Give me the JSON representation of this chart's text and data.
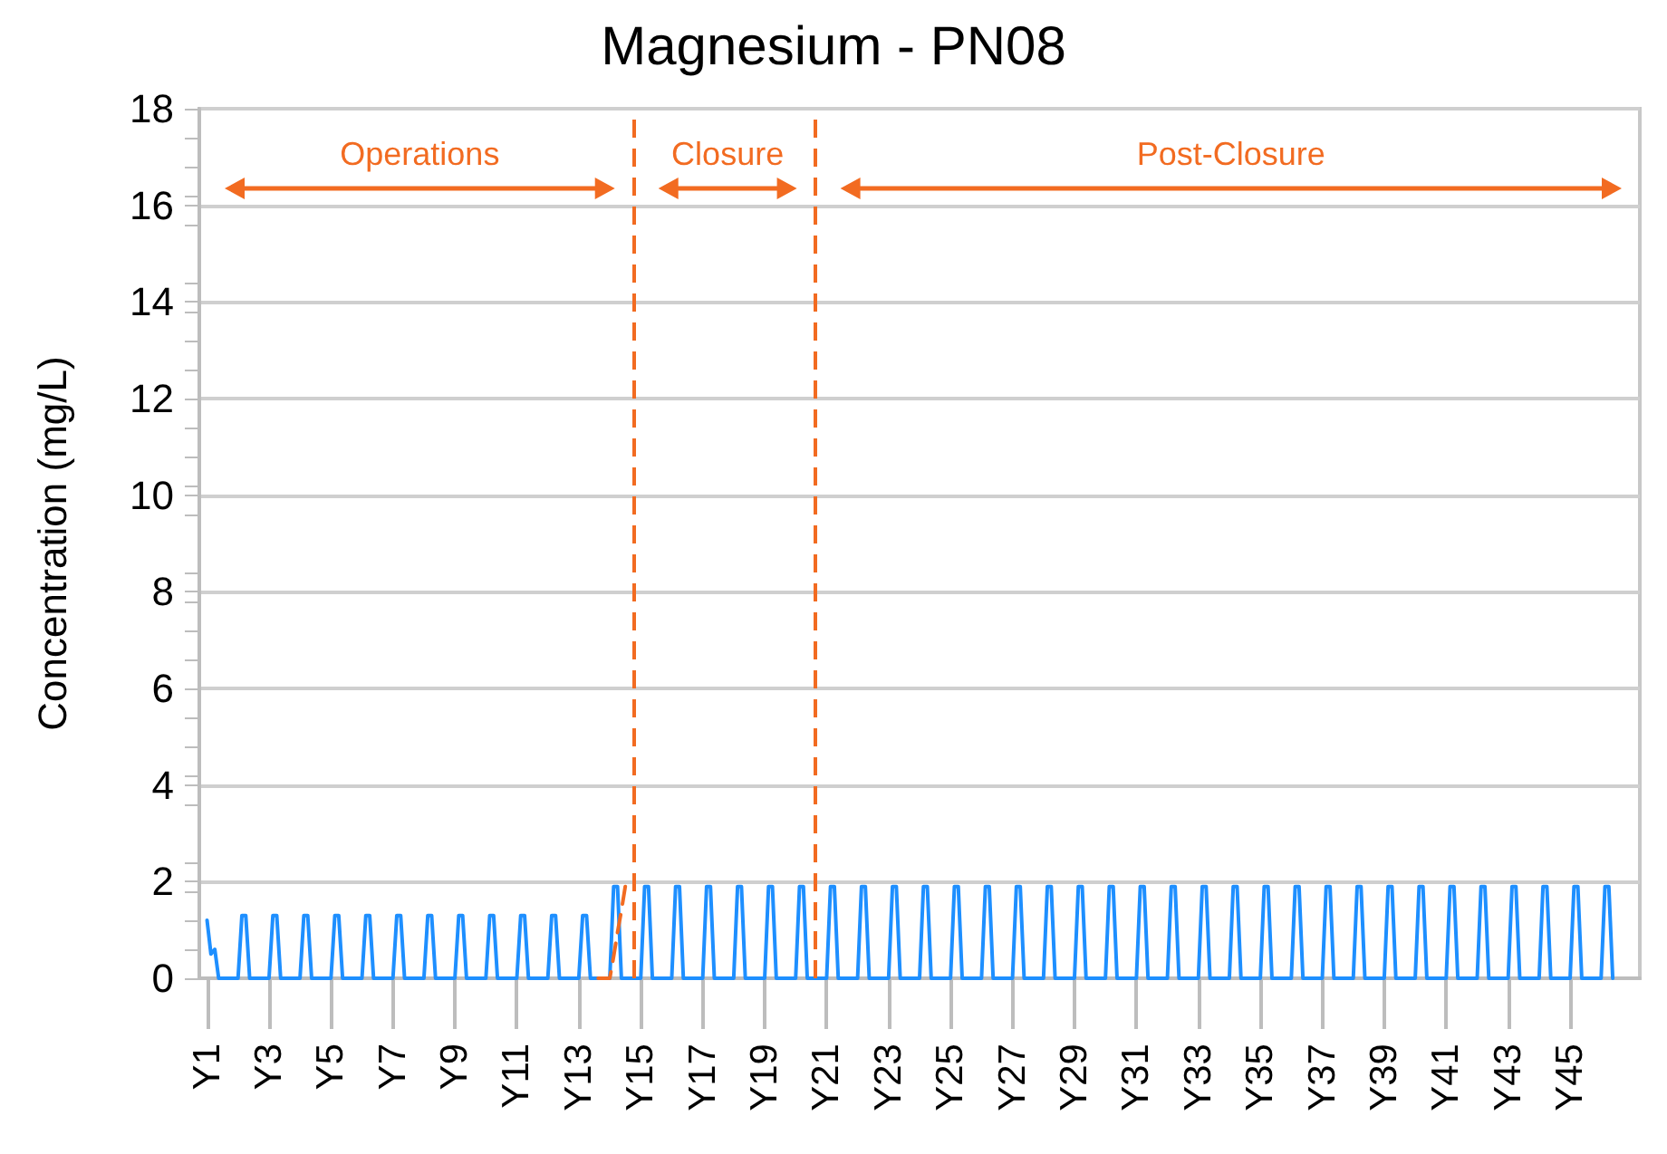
{
  "chart_data": {
    "type": "line",
    "title": "Magnesium - PN08",
    "ylabel": "Concentration (mg/L)",
    "categories": [
      null,
      null,
      "Y1",
      null,
      null,
      null,
      null,
      null,
      null,
      null,
      null,
      null,
      null,
      null,
      null,
      null,
      null,
      null,
      "Y3",
      null,
      null,
      null,
      null,
      null,
      null,
      null,
      null,
      null,
      null,
      null,
      null,
      null,
      null,
      null,
      "Y5",
      null,
      null,
      null,
      null,
      null,
      null,
      null,
      null,
      null,
      null,
      null,
      null,
      null,
      null,
      null,
      "Y7",
      null,
      null,
      null,
      null,
      null,
      null,
      null,
      null,
      null,
      null,
      null,
      null,
      null,
      null,
      null,
      "Y9",
      null,
      null,
      null,
      null,
      null,
      null,
      null,
      null,
      null,
      null,
      null,
      null,
      null,
      null,
      null,
      "Y11",
      null,
      null,
      null,
      null,
      null,
      null,
      null,
      null,
      null,
      null,
      null,
      null,
      null,
      null,
      null,
      "Y13",
      null,
      null,
      null,
      null,
      null,
      null,
      null,
      null,
      null,
      null,
      null,
      null,
      null,
      null,
      null,
      "Y15",
      null,
      null,
      null,
      null,
      null,
      null,
      null,
      null,
      null,
      null,
      null,
      null,
      null,
      null,
      null,
      "Y17",
      null,
      null,
      null,
      null,
      null,
      null,
      null,
      null,
      null,
      null,
      null,
      null,
      null,
      null,
      null,
      "Y19",
      null,
      null,
      null,
      null,
      null,
      null,
      null,
      null,
      null,
      null,
      null,
      null,
      null,
      null,
      null,
      "Y21",
      null,
      null,
      null,
      null,
      null,
      null,
      null,
      null,
      null,
      null,
      null,
      null,
      null,
      null,
      null,
      "Y23",
      null,
      null,
      null,
      null,
      null,
      null,
      null,
      null,
      null,
      null,
      null,
      null,
      null,
      null,
      null,
      "Y25",
      null,
      null,
      null,
      null,
      null,
      null,
      null,
      null,
      null,
      null,
      null,
      null,
      null,
      null,
      null,
      "Y27",
      null,
      null,
      null,
      null,
      null,
      null,
      null,
      null,
      null,
      null,
      null,
      null,
      null,
      null,
      null,
      "Y29",
      null,
      null,
      null,
      null,
      null,
      null,
      null,
      null,
      null,
      null,
      null,
      null,
      null,
      null,
      null,
      "Y31",
      null,
      null,
      null,
      null,
      null,
      null,
      null,
      null,
      null,
      null,
      null,
      null,
      null,
      null,
      null,
      "Y33",
      null,
      null,
      null,
      null,
      null,
      null,
      null,
      null,
      null,
      null,
      null,
      null,
      null,
      null,
      null,
      "Y35",
      null,
      null,
      null,
      null,
      null,
      null,
      null,
      null,
      null,
      null,
      null,
      null,
      null,
      null,
      null,
      "Y37",
      null,
      null,
      null,
      null,
      null,
      null,
      null,
      null,
      null,
      null,
      null,
      null,
      null,
      null,
      null,
      "Y39",
      null,
      null,
      null,
      null,
      null,
      null,
      null,
      null,
      null,
      null,
      null,
      null,
      null,
      null,
      null,
      "Y41",
      null,
      null,
      null,
      null,
      null,
      null,
      null,
      null,
      null,
      null,
      null,
      null,
      null,
      null,
      null,
      "Y43",
      null,
      null,
      null,
      null,
      null,
      null,
      null,
      null,
      null,
      null,
      null,
      null,
      null,
      null,
      null,
      "Y45",
      null,
      null,
      null,
      null,
      null,
      null,
      null,
      null,
      null,
      null,
      null,
      null,
      null,
      null,
      null,
      null,
      null,
      null
    ],
    "ylim": [
      0,
      18
    ],
    "yticks": [
      0,
      2,
      4,
      6,
      8,
      10,
      12,
      14,
      16,
      18
    ],
    "grid": "y",
    "marker": "none",
    "series": [
      {
        "color": "#1e8fff",
        "line_style": "solid",
        "values": [
          null,
          null,
          1.2,
          0.5,
          0.6,
          0,
          0,
          0,
          0,
          0,
          0,
          1.3,
          1.3,
          0,
          0,
          0,
          0,
          0,
          0,
          1.3,
          1.3,
          0,
          0,
          0,
          0,
          0,
          0,
          1.3,
          1.3,
          0,
          0,
          0,
          0,
          0,
          0,
          1.3,
          1.3,
          0,
          0,
          0,
          0,
          0,
          0,
          1.3,
          1.3,
          0,
          0,
          0,
          0,
          0,
          0,
          1.3,
          1.3,
          0,
          0,
          0,
          0,
          0,
          0,
          1.3,
          1.3,
          0,
          0,
          0,
          0,
          0,
          0,
          1.3,
          1.3,
          0,
          0,
          0,
          0,
          0,
          0,
          1.3,
          1.3,
          0,
          0,
          0,
          0,
          0,
          0,
          1.3,
          1.3,
          0,
          0,
          0,
          0,
          0,
          0,
          1.3,
          1.3,
          0,
          0,
          0,
          0,
          0,
          0,
          1.3,
          1.3,
          0,
          0,
          0,
          0,
          0,
          0,
          1.9,
          1.9,
          0,
          0,
          0,
          0,
          0,
          0,
          1.9,
          1.9,
          0,
          0,
          0,
          0,
          0,
          0,
          1.9,
          1.9,
          0,
          0,
          0,
          0,
          0,
          0,
          1.9,
          1.9,
          0,
          0,
          0,
          0,
          0,
          0,
          1.9,
          1.9,
          0,
          0,
          0,
          0,
          0,
          0,
          1.9,
          1.9,
          0,
          0,
          0,
          0,
          0,
          0,
          1.9,
          1.9,
          0,
          0,
          0,
          0,
          0,
          0,
          1.9,
          1.9,
          0,
          0,
          0,
          0,
          0,
          0,
          1.9,
          1.9,
          0,
          0,
          0,
          0,
          0,
          0,
          1.9,
          1.9,
          0,
          0,
          0,
          0,
          0,
          0,
          1.9,
          1.9,
          0,
          0,
          0,
          0,
          0,
          0,
          1.9,
          1.9,
          0,
          0,
          0,
          0,
          0,
          0,
          1.9,
          1.9,
          0,
          0,
          0,
          0,
          0,
          0,
          1.9,
          1.9,
          0,
          0,
          0,
          0,
          0,
          0,
          1.9,
          1.9,
          0,
          0,
          0,
          0,
          0,
          0,
          1.9,
          1.9,
          0,
          0,
          0,
          0,
          0,
          0,
          1.9,
          1.9,
          0,
          0,
          0,
          0,
          0,
          0,
          1.9,
          1.9,
          0,
          0,
          0,
          0,
          0,
          0,
          1.9,
          1.9,
          0,
          0,
          0,
          0,
          0,
          0,
          1.9,
          1.9,
          0,
          0,
          0,
          0,
          0,
          0,
          1.9,
          1.9,
          0,
          0,
          0,
          0,
          0,
          0,
          1.9,
          1.9,
          0,
          0,
          0,
          0,
          0,
          0,
          1.9,
          1.9,
          0,
          0,
          0,
          0,
          0,
          0,
          1.9,
          1.9,
          0,
          0,
          0,
          0,
          0,
          0,
          1.9,
          1.9,
          0,
          0,
          0,
          0,
          0,
          0,
          1.9,
          1.9,
          0,
          0,
          0,
          0,
          0,
          0,
          1.9,
          1.9,
          0,
          0,
          0,
          0,
          0,
          0,
          1.9,
          1.9,
          0,
          0,
          0,
          0,
          0,
          0,
          1.9,
          1.9,
          0,
          0,
          0,
          0,
          0,
          0,
          1.9,
          1.9,
          0,
          0,
          0,
          0,
          0,
          0,
          1.9,
          1.9,
          0,
          0,
          0,
          0,
          0,
          0,
          1.9,
          1.9,
          0,
          0,
          0,
          0,
          0,
          0,
          1.9,
          1.9,
          0,
          null,
          null,
          null,
          null,
          null,
          null,
          null
        ]
      },
      {
        "color": "#f26b21",
        "line_style": "dashed",
        "values": [
          null,
          null,
          null,
          null,
          null,
          null,
          null,
          null,
          null,
          null,
          null,
          null,
          null,
          null,
          null,
          null,
          null,
          null,
          null,
          null,
          null,
          null,
          null,
          null,
          null,
          null,
          null,
          null,
          null,
          null,
          null,
          null,
          null,
          null,
          null,
          null,
          null,
          null,
          null,
          null,
          null,
          null,
          null,
          null,
          null,
          null,
          null,
          null,
          null,
          null,
          null,
          null,
          null,
          null,
          null,
          null,
          null,
          null,
          null,
          null,
          null,
          null,
          null,
          null,
          null,
          null,
          null,
          null,
          null,
          null,
          null,
          null,
          null,
          null,
          null,
          null,
          null,
          null,
          null,
          null,
          null,
          null,
          null,
          null,
          null,
          null,
          null,
          null,
          null,
          null,
          null,
          null,
          null,
          null,
          null,
          null,
          null,
          null,
          null,
          null,
          null,
          null,
          null,
          0,
          0,
          0,
          0,
          0.45,
          0.95,
          1.4,
          1.9,
          null,
          null,
          null,
          null,
          null,
          null,
          null,
          null,
          null,
          null,
          null,
          null,
          null,
          null,
          null,
          null,
          null,
          null,
          null,
          null,
          null,
          null,
          null,
          null,
          null,
          null,
          null,
          null,
          null,
          null,
          null,
          null,
          null,
          null,
          null,
          null,
          null,
          null,
          null,
          null,
          null,
          null,
          null,
          null,
          null,
          null,
          null,
          null,
          null,
          null,
          null,
          null,
          null,
          null,
          null,
          null,
          null,
          null,
          null,
          null,
          null,
          null,
          null,
          null,
          null,
          null,
          null,
          null,
          null,
          null,
          null,
          null,
          null,
          null,
          null,
          null,
          null,
          null,
          null,
          null,
          null,
          null,
          null,
          null,
          null,
          null,
          null,
          null,
          null,
          null,
          null,
          null,
          null,
          null,
          null,
          null,
          null,
          null,
          null,
          null,
          null,
          null,
          null,
          null,
          null,
          null,
          null,
          null,
          null,
          null,
          null,
          null,
          null,
          null,
          null,
          null,
          null,
          null,
          null,
          null,
          null,
          null,
          null,
          null,
          null,
          null,
          null,
          null,
          null,
          null,
          null,
          null,
          null,
          null,
          null,
          null,
          null,
          null,
          null,
          null,
          null,
          null,
          null,
          null,
          null,
          null,
          null,
          null,
          null,
          null,
          null,
          null,
          null,
          null,
          null,
          null,
          null,
          null,
          null,
          null,
          null,
          null,
          null,
          null,
          null,
          null,
          null,
          null,
          null,
          null,
          null,
          null,
          null,
          null,
          null,
          null,
          null,
          null,
          null,
          null,
          null,
          null,
          null,
          null,
          null,
          null,
          null,
          null,
          null,
          null,
          null,
          null,
          null,
          null,
          null,
          null,
          null,
          null,
          null,
          null,
          null,
          null,
          null,
          null,
          null,
          null,
          null,
          null,
          null,
          null,
          null,
          null,
          null,
          null,
          null,
          null,
          null,
          null,
          null,
          null,
          null,
          null,
          null,
          null,
          null,
          null,
          null,
          null,
          null,
          null,
          null,
          null,
          null,
          null,
          null,
          null,
          null,
          null,
          null,
          null,
          null,
          null,
          null,
          null,
          null,
          null,
          null,
          null,
          null,
          null,
          null,
          null,
          null,
          null,
          null,
          null,
          null,
          null,
          null,
          null,
          null,
          null
        ]
      }
    ],
    "annotations": [
      "Operations",
      "Closure",
      "Post-Closure"
    ]
  }
}
